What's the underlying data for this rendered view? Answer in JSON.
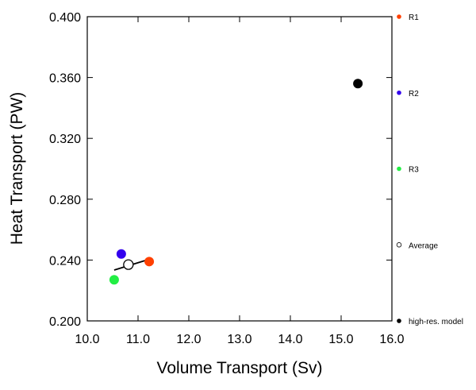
{
  "chart_data": {
    "type": "scatter",
    "x_label": "Volume Transport (Sv)",
    "y_label": "Heat Transport (PW)",
    "xlim": [
      10.0,
      16.0
    ],
    "ylim": [
      0.2,
      0.4
    ],
    "xticks": [
      {
        "value": 10,
        "label": "10.0"
      },
      {
        "value": 11,
        "label": "11.0"
      },
      {
        "value": 12,
        "label": "12.0"
      },
      {
        "value": 13,
        "label": "13.0"
      },
      {
        "value": 14,
        "label": "14.0"
      },
      {
        "value": 15,
        "label": "15.0"
      },
      {
        "value": 16,
        "label": "16.0"
      }
    ],
    "yticks": [
      {
        "value": 0.2,
        "label": "0.200"
      },
      {
        "value": 0.24,
        "label": "0.240"
      },
      {
        "value": 0.28,
        "label": "0.280"
      },
      {
        "value": 0.32,
        "label": "0.320"
      },
      {
        "value": 0.36,
        "label": "0.360"
      },
      {
        "value": 0.4,
        "label": "0.400"
      }
    ],
    "series": [
      {
        "name": "R1",
        "color": "#ff4000",
        "marker": "filled",
        "x": [
          11.22
        ],
        "y": [
          0.239
        ]
      },
      {
        "name": "R2",
        "color": "#3300ee",
        "marker": "filled",
        "x": [
          10.67
        ],
        "y": [
          0.244
        ]
      },
      {
        "name": "R3",
        "color": "#22ee44",
        "marker": "filled",
        "x": [
          10.53
        ],
        "y": [
          0.227
        ]
      },
      {
        "name": "Average",
        "color": "#000000",
        "marker": "open",
        "x": [
          10.81
        ],
        "y": [
          0.237
        ]
      },
      {
        "name": "high-res. model",
        "color": "#000000",
        "marker": "filled",
        "x": [
          15.33
        ],
        "y": [
          0.356
        ]
      }
    ],
    "fit": {
      "color": "#000000",
      "x": [
        10.53,
        11.14
      ],
      "y": [
        0.2334,
        0.2397
      ]
    }
  }
}
